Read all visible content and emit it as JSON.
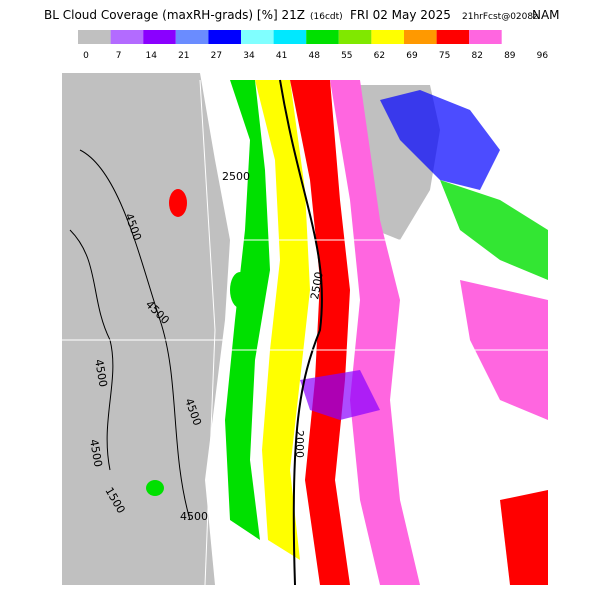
{
  "header": {
    "title": "BL Cloud Coverage (maxRH-grads) [%] 21Z",
    "local_time": "(16cdt)",
    "date": "FRI 02 May 2025",
    "forecast": "21hrFcst@0208z",
    "model": "NAM"
  },
  "legend": {
    "colors": [
      "#c0c0c0",
      "#b36bff",
      "#8a00ff",
      "#6a8cff",
      "#0000ff",
      "#80ffff",
      "#00e8ff",
      "#00e000",
      "#80e800",
      "#ffff00",
      "#ff9900",
      "#ff0000",
      "#ff66e0",
      "#ffffff"
    ],
    "ticks": [
      0,
      7,
      14,
      21,
      27,
      34,
      41,
      48,
      55,
      62,
      69,
      75,
      82,
      89,
      96
    ]
  },
  "map": {
    "contour_labels": [
      "4500",
      "2500",
      "4500",
      "4500",
      "2500",
      "4500",
      "2000",
      "4500",
      "1500",
      "4500"
    ]
  }
}
